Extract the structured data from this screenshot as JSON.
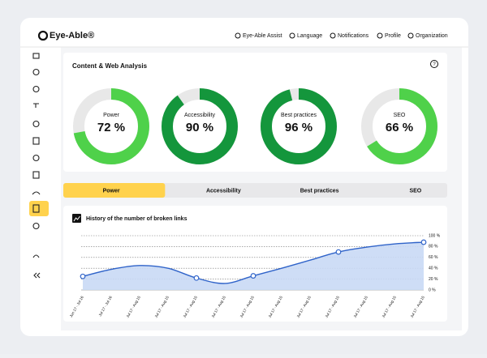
{
  "header": {
    "logo": "Eye-Able®",
    "nav": [
      "Eye-Able Assist",
      "Language",
      "Notifications",
      "Profile",
      "Organization"
    ]
  },
  "analysis": {
    "title": "Content & Web Analysis",
    "help": "?",
    "gauges": [
      {
        "label": "Power",
        "value": 72,
        "value_label": "72 %",
        "color": "#4fd14a"
      },
      {
        "label": "Accessibility",
        "value": 90,
        "value_label": "90 %",
        "color": "#14963c"
      },
      {
        "label": "Best practices",
        "value": 96,
        "value_label": "96 %",
        "color": "#14963c"
      },
      {
        "label": "SEO",
        "value": 66,
        "value_label": "66 %",
        "color": "#4fd14a"
      }
    ]
  },
  "tabs": {
    "items": [
      "Power",
      "Accessibility",
      "Best practices",
      "SEO"
    ],
    "active": 0
  },
  "chart": {
    "type": "line",
    "title": "History of the number of broken links",
    "categories": [
      "Jun 17 - Jul 16",
      "Jul 17 - Jul 16",
      "Jul 17 - Aug 15",
      "Jul 17 - Aug 15",
      "Jul 17 - Aug 15",
      "Jul 17 - Aug 15",
      "Jul 17 - Aug 15",
      "Jul 17 - Aug 15",
      "Jul 17 - Aug 15",
      "Jul 17 - Aug 15",
      "Jul 17 - Aug 15",
      "Jul 17 - Aug 15",
      "Jul 17 - Aug 15"
    ],
    "series": [
      {
        "color": "#2f63c9",
        "values": [
          25,
          38,
          45,
          40,
          22,
          12,
          26,
          40,
          55,
          70,
          79,
          85,
          88
        ]
      }
    ],
    "markers": [
      0,
      4,
      6,
      9,
      12
    ],
    "ylim": [
      0,
      100
    ],
    "yticks": [
      {
        "value": 0,
        "label": "0 %"
      },
      {
        "value": 20,
        "label": "20 %"
      },
      {
        "value": 40,
        "label": "40 %"
      },
      {
        "value": 60,
        "label": "60 %"
      },
      {
        "value": 80,
        "label": "80 %"
      },
      {
        "value": 100,
        "label": "100 %"
      }
    ],
    "grid": true
  }
}
